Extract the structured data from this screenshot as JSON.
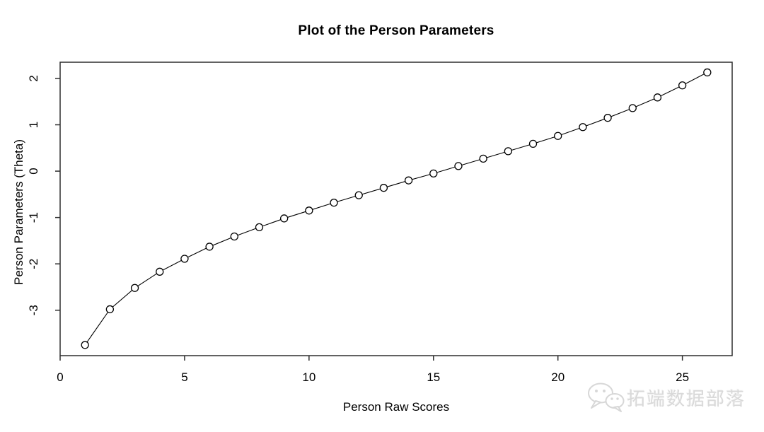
{
  "chart_data": {
    "type": "line",
    "title": "Plot of the Person Parameters",
    "xlabel": "Person Raw Scores",
    "ylabel": "Person Parameters (Theta)",
    "x": [
      1,
      2,
      3,
      4,
      5,
      6,
      7,
      8,
      9,
      10,
      11,
      12,
      13,
      14,
      15,
      16,
      17,
      18,
      19,
      20,
      21,
      22,
      23,
      24,
      25,
      26
    ],
    "y": [
      -3.75,
      -2.98,
      -2.52,
      -2.17,
      -1.89,
      -1.63,
      -1.41,
      -1.21,
      -1.02,
      -0.85,
      -0.68,
      -0.52,
      -0.36,
      -0.2,
      -0.05,
      0.11,
      0.27,
      0.43,
      0.59,
      0.76,
      0.95,
      1.15,
      1.36,
      1.59,
      1.85,
      2.13
    ],
    "x_ticks": [
      0,
      5,
      10,
      15,
      20,
      25
    ],
    "y_ticks": [
      2,
      1,
      0,
      -1,
      -2,
      -3
    ],
    "xlim": [
      0,
      27
    ],
    "ylim": [
      -3.98,
      2.35
    ],
    "grid": false,
    "legend": false,
    "marker": "open-circle",
    "line_color": "#000000",
    "axis_color": "#2e2e2e",
    "tick_label_color": "#000000"
  },
  "watermark": {
    "text": "拓端数据部落",
    "icon": "wechat-icon",
    "color": "#d9d9d9"
  }
}
